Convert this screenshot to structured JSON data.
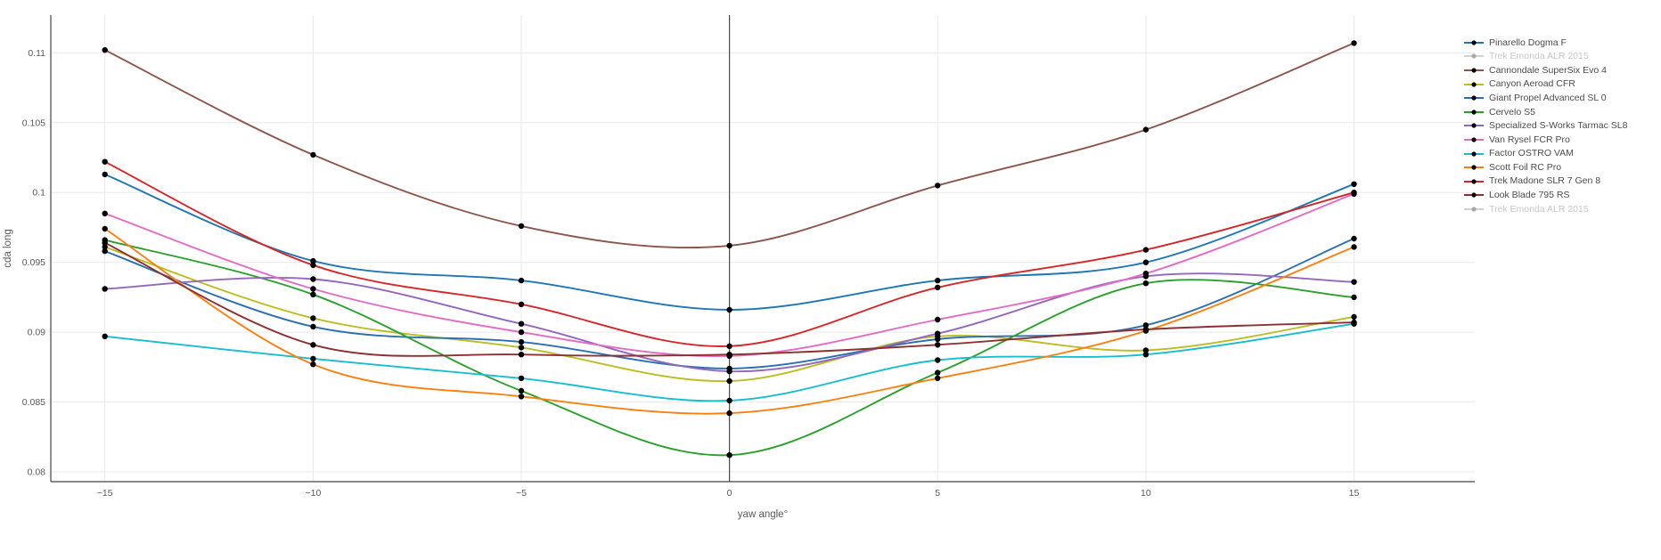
{
  "page": {
    "background": "#ffffff"
  },
  "chart_data": {
    "type": "line",
    "title": "",
    "xlabel": "yaw angle°",
    "ylabel": "cda long",
    "line_shape": "spline",
    "grid": true,
    "legend_position": "right",
    "marker_color": "#000000",
    "x": [
      -15,
      -10,
      -5,
      0,
      5,
      10,
      15
    ],
    "xtick_labels": [
      "−15",
      "−10",
      "−5",
      "0",
      "5",
      "10",
      "15"
    ],
    "ytick_values": [
      0.08,
      0.085,
      0.09,
      0.095,
      0.1,
      0.105,
      0.11
    ],
    "ytick_labels": [
      "0.08",
      "0.085",
      "0.09",
      "0.095",
      "0.1",
      "0.105",
      "0.11"
    ],
    "xlim": [
      -16.3,
      17.9
    ],
    "ylim": [
      0.0793,
      0.1127
    ],
    "zeroline_x": 0,
    "series": [
      {
        "name": "Pinarello Dogma F",
        "color": "#1f77b4",
        "muted": false,
        "values": [
          0.1013,
          0.0951,
          0.0937,
          0.0916,
          0.0937,
          0.095,
          0.1006
        ]
      },
      {
        "name": "Trek Emonda ALR 2015",
        "color": "#d2d2d2",
        "muted": true,
        "values": null
      },
      {
        "name": "Cannondale SuperSix Evo 4",
        "color": "#8c564b",
        "muted": false,
        "values": [
          0.1102,
          0.1027,
          0.0976,
          0.0962,
          0.1005,
          0.1045,
          0.1107
        ]
      },
      {
        "name": "Canyon Aeroad CFR",
        "color": "#bcbd22",
        "muted": false,
        "values": [
          0.0961,
          0.091,
          0.0889,
          0.0865,
          0.0897,
          0.0887,
          0.0911
        ]
      },
      {
        "name": "Giant Propel Advanced SL 0",
        "color": "#2b6fb2",
        "muted": false,
        "values": [
          0.0958,
          0.0904,
          0.0893,
          0.0874,
          0.0895,
          0.0905,
          0.0967
        ]
      },
      {
        "name": "Cervelo S5",
        "color": "#2ca02c",
        "muted": false,
        "values": [
          0.0966,
          0.0927,
          0.0858,
          0.0812,
          0.0871,
          0.0935,
          0.0925
        ]
      },
      {
        "name": "Specialized S-Works Tarmac SL8",
        "color": "#9467bd",
        "muted": false,
        "values": [
          0.0931,
          0.0938,
          0.0906,
          0.0872,
          0.0899,
          0.094,
          0.0936
        ]
      },
      {
        "name": "Van Rysel FCR Pro",
        "color": "#e36cc5",
        "muted": false,
        "values": [
          0.0985,
          0.0931,
          0.09,
          0.0883,
          0.0909,
          0.0942,
          0.0999
        ]
      },
      {
        "name": "Factor OSTRO VAM",
        "color": "#17becf",
        "muted": false,
        "values": [
          0.0897,
          0.0881,
          0.0867,
          0.0851,
          0.088,
          0.0884,
          0.0906
        ]
      },
      {
        "name": "Scott Foil RC Pro",
        "color": "#ff7f0e",
        "muted": false,
        "values": [
          0.0974,
          0.0877,
          0.0854,
          0.0842,
          0.0867,
          0.0901,
          0.0961
        ]
      },
      {
        "name": "Trek Madone SLR 7 Gen 8",
        "color": "#d62728",
        "muted": false,
        "values": [
          0.1022,
          0.0948,
          0.092,
          0.089,
          0.0932,
          0.0959,
          0.1
        ]
      },
      {
        "name": "Look Blade 795 RS",
        "color": "#8e3031",
        "muted": false,
        "values": [
          0.0964,
          0.0891,
          0.0884,
          0.0884,
          0.0891,
          0.0902,
          0.0907
        ]
      },
      {
        "name": "Trek Emonda ALR 2015",
        "color": "#d2d2d2",
        "muted": true,
        "values": null
      }
    ],
    "style": {
      "gridline_color": "#e9e9e9",
      "axisline_color": "#444444",
      "zeroline_color": "#4a4a4a",
      "muted_dot_color": "#aaaaaa"
    }
  }
}
